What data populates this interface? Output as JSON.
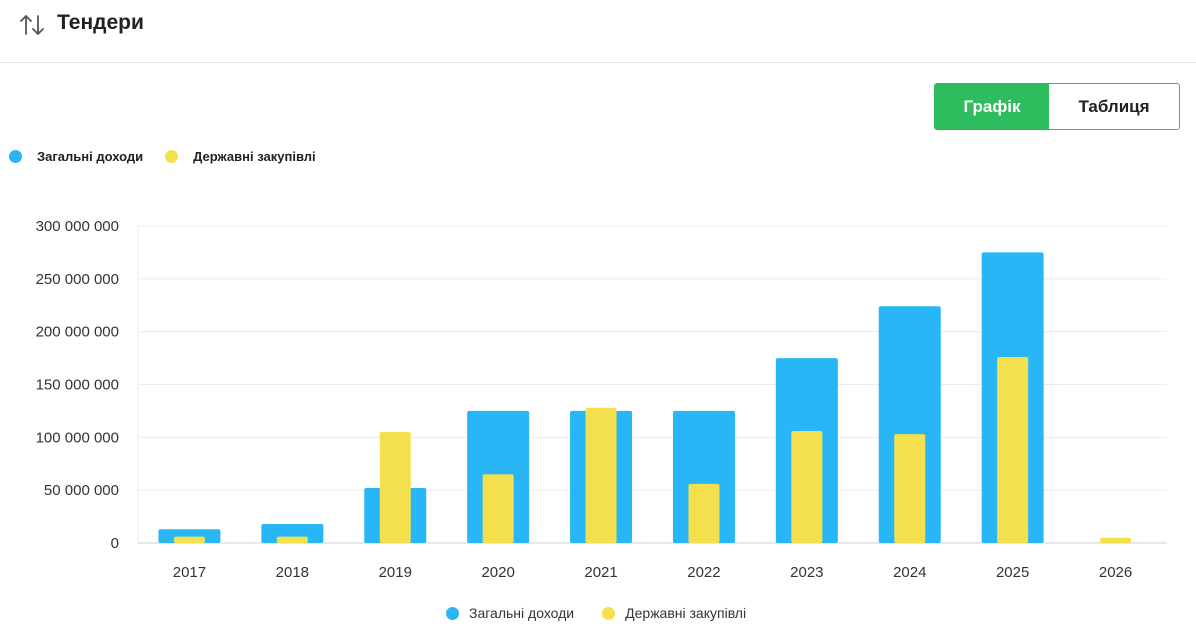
{
  "header": {
    "title": "Тендери",
    "icon": "sort-arrows-icon"
  },
  "view_toggle": {
    "chart_label": "Графік",
    "table_label": "Таблиця",
    "active": "chart"
  },
  "colors": {
    "accent": "#2dbd5f",
    "total_income": "#29b6f6",
    "public_procurement": "#f4e04d"
  },
  "chart_data": {
    "type": "bar",
    "title": "",
    "xlabel": "",
    "ylabel": "",
    "categories": [
      "2017",
      "2018",
      "2019",
      "2020",
      "2021",
      "2022",
      "2023",
      "2024",
      "2025",
      "2026"
    ],
    "series": [
      {
        "name": "Загальні доходи",
        "values": [
          13000000,
          18000000,
          52000000,
          125000000,
          125000000,
          125000000,
          175000000,
          224000000,
          275000000,
          0
        ]
      },
      {
        "name": "Державні закупівлі",
        "values": [
          6000000,
          6000000,
          105000000,
          65000000,
          128000000,
          56000000,
          106000000,
          103000000,
          176000000,
          5000000
        ]
      }
    ],
    "ylim": [
      0,
      300000000
    ],
    "yticks": [
      "0",
      "50 000 000",
      "100 000 000",
      "150 000 000",
      "200 000 000",
      "250 000 000",
      "300 000 000"
    ],
    "grid": true,
    "legend": "top-left and bottom-center"
  }
}
